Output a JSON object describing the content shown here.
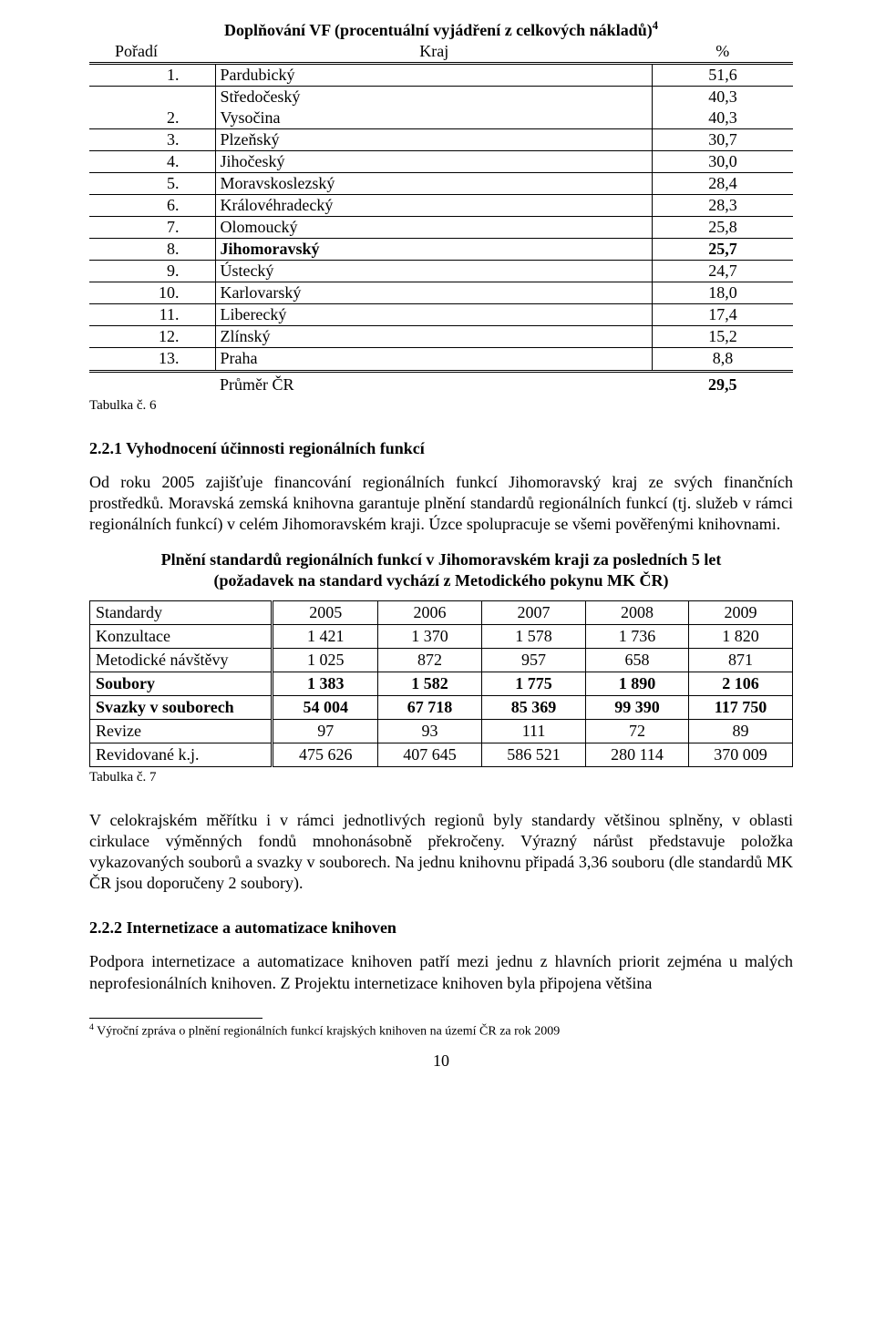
{
  "table6": {
    "title": "Doplňování VF (procentuální vyjádření z celkových nákladů)",
    "sup": "4",
    "head": {
      "c1": "Pořadí",
      "c2": "Kraj",
      "c3": "%"
    },
    "rows": [
      {
        "rank": "1.",
        "kraj": "Pardubický",
        "val": "51,6"
      },
      {
        "rank": "",
        "kraj": "Středočeský",
        "val": "40,3"
      },
      {
        "rank": "2.",
        "kraj": "Vysočina",
        "val": "40,3"
      },
      {
        "rank": "3.",
        "kraj": "Plzeňský",
        "val": "30,7"
      },
      {
        "rank": "4.",
        "kraj": "Jihočeský",
        "val": "30,0"
      },
      {
        "rank": "5.",
        "kraj": "Moravskoslezský",
        "val": "28,4"
      },
      {
        "rank": "6.",
        "kraj": "Královéhradecký",
        "val": "28,3"
      },
      {
        "rank": "7.",
        "kraj": "Olomoucký",
        "val": "25,8"
      },
      {
        "rank": "8.",
        "kraj": "Jihomoravský",
        "val": "25,7",
        "bold": true
      },
      {
        "rank": "9.",
        "kraj": "Ústecký",
        "val": "24,7"
      },
      {
        "rank": "10.",
        "kraj": "Karlovarský",
        "val": "18,0"
      },
      {
        "rank": "11.",
        "kraj": "Liberecký",
        "val": "17,4"
      },
      {
        "rank": "12.",
        "kraj": "Zlínský",
        "val": "15,2"
      },
      {
        "rank": "13.",
        "kraj": "Praha",
        "val": "8,8"
      }
    ],
    "avg": {
      "label": "Průměr ČR",
      "val": "29,5"
    },
    "caption": "Tabulka č. 6"
  },
  "section221": {
    "heading": "2.2.1 Vyhodnocení účinnosti regionálních funkcí",
    "p1": "Od roku 2005 zajišťuje financování regionálních funkcí Jihomoravský kraj ze svých finančních prostředků. Moravská zemská knihovna garantuje plnění standardů regionálních funkcí (tj. služeb v rámci regionálních funkcí) v celém Jihomoravském kraji. Úzce spolupracuje se všemi pověřenými knihovnami."
  },
  "table7": {
    "title1": "Plnění standardů regionálních funkcí v Jihomoravském kraji za posledních 5 let",
    "title2": "(požadavek na standard vychází z Metodického pokynu MK ČR)",
    "head": [
      "Standardy",
      "2005",
      "2006",
      "2007",
      "2008",
      "2009"
    ],
    "rows": [
      {
        "label": "Konzultace",
        "cells": [
          "1 421",
          "1 370",
          "1 578",
          "1 736",
          "1 820"
        ],
        "bold": false
      },
      {
        "label": "Metodické návštěvy",
        "cells": [
          "1 025",
          "872",
          "957",
          "658",
          "871"
        ],
        "bold": false
      },
      {
        "label": "Soubory",
        "cells": [
          "1 383",
          "1 582",
          "1 775",
          "1 890",
          "2 106"
        ],
        "bold": true
      },
      {
        "label": "Svazky v souborech",
        "cells": [
          "54 004",
          "67 718",
          "85 369",
          "99 390",
          "117 750"
        ],
        "bold": true
      },
      {
        "label": "Revize",
        "cells": [
          "97",
          "93",
          "111",
          "72",
          "89"
        ],
        "bold": false
      },
      {
        "label": "Revidované k.j.",
        "cells": [
          "475 626",
          "407 645",
          "586 521",
          "280 114",
          "370 009"
        ],
        "bold": false
      }
    ],
    "caption": "Tabulka č. 7"
  },
  "para_after_t7": "V celokrajském měřítku i v rámci jednotlivých regionů byly standardy většinou splněny, v oblasti cirkulace výměnných fondů mnohonásobně překročeny. Výrazný nárůst představuje položka vykazovaných souborů a svazky v souborech. Na jednu knihovnu připadá 3,36 souboru (dle standardů MK ČR jsou doporučeny 2 soubory).",
  "section222": {
    "heading": "2.2.2 Internetizace a automatizace knihoven",
    "p1": "Podpora internetizace a automatizace knihoven patří mezi jednu z hlavních priorit zejména u malých neprofesionálních knihoven. Z Projektu internetizace knihoven byla připojena většina"
  },
  "footnote": {
    "num": "4",
    "text": " Výroční zpráva o plnění regionálních funkcí krajských knihoven na území ČR za rok 2009"
  },
  "pagenum": "10"
}
